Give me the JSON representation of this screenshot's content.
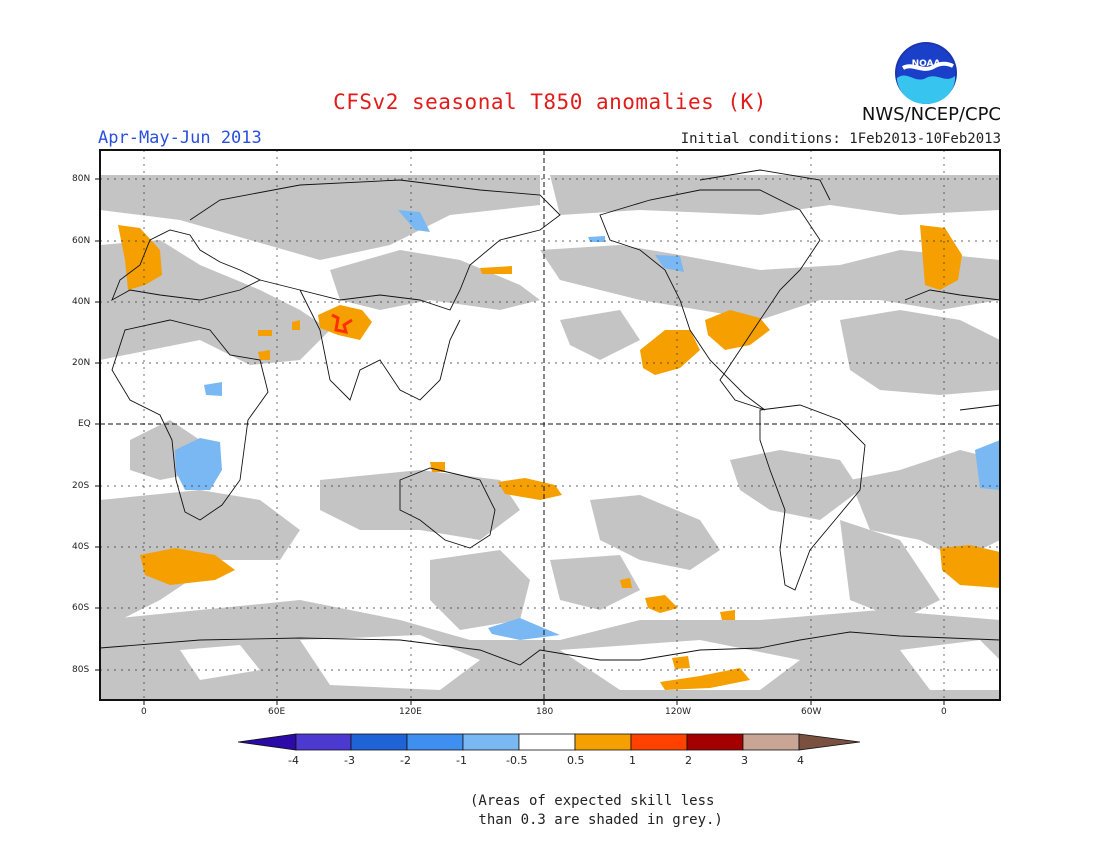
{
  "title": "CFSv2 seasonal T850 anomalies (K)",
  "period": "Apr-May-Jun 2013",
  "initial_conditions": "Initial conditions: 1Feb2013-10Feb2013",
  "agency": "NWS/NCEP/CPC",
  "logo": {
    "text": "NOAA",
    "name": "noaa-logo"
  },
  "note": "(Areas of expected skill less\n than 0.3 are shaded in grey.)",
  "map": {
    "lon_labels": [
      "0",
      "60E",
      "120E",
      "180",
      "120W",
      "60W",
      "0"
    ],
    "lat_labels": [
      "80N",
      "60N",
      "40N",
      "20N",
      "EQ",
      "20S",
      "40S",
      "60S",
      "80S"
    ]
  },
  "colorbar": {
    "labels": [
      "-4",
      "-3",
      "-2",
      "-1",
      "-0.5",
      "0.5",
      "1",
      "2",
      "3",
      "4"
    ],
    "colors": [
      "#2b0aa8",
      "#4c3ad0",
      "#1f63d6",
      "#3f8ff0",
      "#7ab8f4",
      "#ffffff",
      "#f5a000",
      "#ff4200",
      "#a40000",
      "#c9a595",
      "#7a5040"
    ]
  },
  "colors": {
    "grey": "#c4c4c4",
    "orange": "#f5a000",
    "red": "#ff3000",
    "lightblue": "#7ab8f4",
    "blue": "#5aa0f0"
  }
}
